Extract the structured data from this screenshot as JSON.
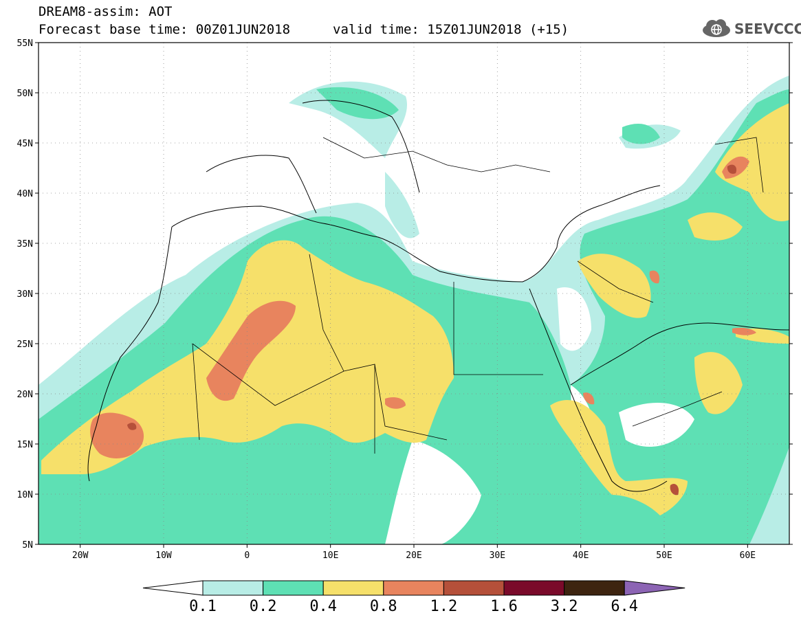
{
  "header": {
    "title": "DREAM8-assim: AOT",
    "base_time": "Forecast base time: 00Z01JUN2018",
    "valid_time": "valid time: 15Z01JUN2018 (+15)",
    "logo_text": "SEEVCCC",
    "logo_icon": "cloud-globe-icon"
  },
  "map": {
    "lat_ticks": [
      "55N",
      "50N",
      "45N",
      "40N",
      "35N",
      "30N",
      "25N",
      "20N",
      "15N",
      "10N",
      "5N"
    ],
    "lon_ticks": [
      "20W",
      "10W",
      "0",
      "10E",
      "20E",
      "30E",
      "40E",
      "50E",
      "60E"
    ],
    "lon_range": [
      -25,
      65
    ],
    "lat_range": [
      5,
      55
    ],
    "grid": "dotted"
  },
  "colorbar": {
    "colors": [
      "#ffffff",
      "#b8ede6",
      "#5ee0b4",
      "#f6e06a",
      "#e8845e",
      "#b5503a",
      "#7a0a2a",
      "#3d2410",
      "#8c64b4"
    ],
    "labels": [
      "0.1",
      "0.2",
      "0.4",
      "0.8",
      "1.2",
      "1.6",
      "3.2",
      "6.4"
    ]
  }
}
